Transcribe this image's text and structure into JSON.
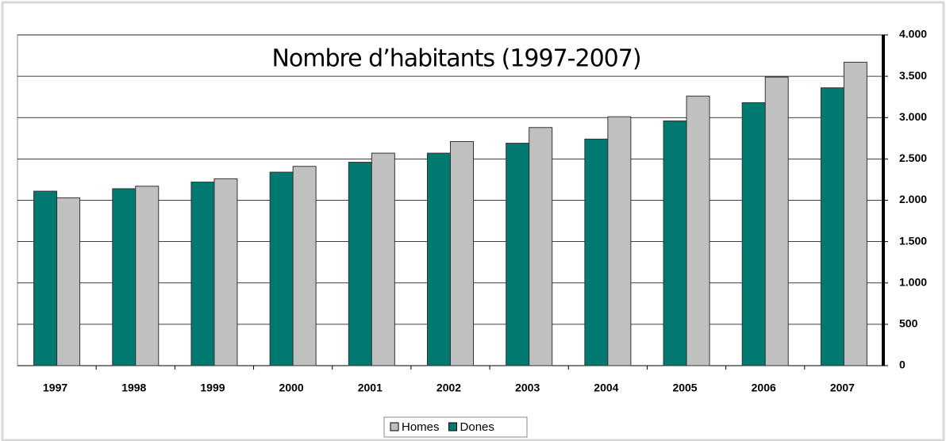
{
  "chart_data": {
    "type": "bar",
    "title": "Nombre d’habitants (1997-2007)",
    "categories": [
      "1997",
      "1998",
      "1999",
      "2000",
      "2001",
      "2002",
      "2003",
      "2004",
      "2005",
      "2006",
      "2007"
    ],
    "series": [
      {
        "name": "Dones",
        "color": "#007a70",
        "values": [
          2110,
          2140,
          2220,
          2340,
          2460,
          2570,
          2690,
          2740,
          2960,
          3180,
          3360
        ]
      },
      {
        "name": "Homes",
        "color": "#c0c0c0",
        "values": [
          2030,
          2170,
          2260,
          2410,
          2570,
          2710,
          2880,
          3010,
          3260,
          3490,
          3670
        ]
      }
    ],
    "ylim": [
      0,
      4000
    ],
    "yticks": [
      0,
      500,
      {
        "value": 1000,
        "label": "1.000"
      },
      {
        "value": 1500,
        "label": "1.500"
      },
      {
        "value": 2000,
        "label": "2.000"
      },
      {
        "value": 2500,
        "label": "2.500"
      },
      {
        "value": 3000,
        "label": "3.000"
      },
      {
        "value": 3500,
        "label": "3.500"
      },
      {
        "value": 4000,
        "label": "4.000"
      }
    ],
    "grid": true
  }
}
